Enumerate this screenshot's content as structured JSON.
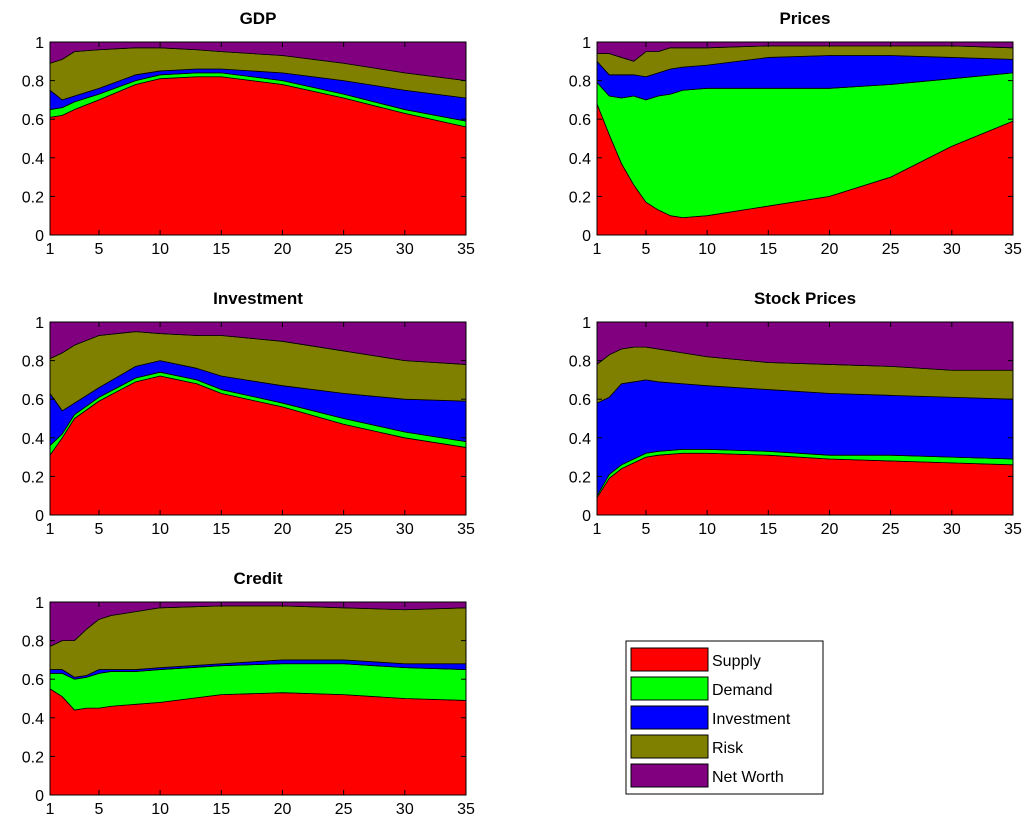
{
  "figure": {
    "colors": {
      "Supply": "#ff0000",
      "Demand": "#00ff00",
      "Investment": "#0000ff",
      "Risk": "#808000",
      "Net Worth": "#800080"
    }
  },
  "legend": {
    "placement": "bottom-right",
    "entries": [
      "Supply",
      "Demand",
      "Investment",
      "Risk",
      "Net Worth"
    ]
  },
  "chart_data": [
    {
      "type": "area",
      "stacked": true,
      "title": "GDP",
      "xlabel": "",
      "ylabel": "",
      "xlim": [
        1,
        35
      ],
      "ylim": [
        0,
        1
      ],
      "xticks": [
        1,
        5,
        10,
        15,
        20,
        25,
        30,
        35
      ],
      "yticks": [
        0,
        0.2,
        0.4,
        0.6,
        0.8,
        1
      ],
      "grid": false,
      "x": [
        1,
        2,
        3,
        5,
        8,
        10,
        13,
        15,
        20,
        25,
        30,
        35
      ],
      "series": [
        {
          "name": "Supply",
          "values": [
            0.61,
            0.62,
            0.65,
            0.7,
            0.78,
            0.81,
            0.82,
            0.82,
            0.78,
            0.71,
            0.63,
            0.56
          ]
        },
        {
          "name": "Demand",
          "values": [
            0.04,
            0.04,
            0.04,
            0.03,
            0.02,
            0.02,
            0.02,
            0.02,
            0.02,
            0.02,
            0.02,
            0.03
          ]
        },
        {
          "name": "Investment",
          "values": [
            0.1,
            0.04,
            0.03,
            0.03,
            0.03,
            0.02,
            0.02,
            0.02,
            0.04,
            0.07,
            0.1,
            0.12
          ]
        },
        {
          "name": "Risk",
          "values": [
            0.14,
            0.21,
            0.23,
            0.2,
            0.14,
            0.12,
            0.1,
            0.09,
            0.09,
            0.09,
            0.09,
            0.09
          ]
        },
        {
          "name": "Net Worth",
          "values": [
            0.11,
            0.09,
            0.05,
            0.04,
            0.03,
            0.03,
            0.04,
            0.05,
            0.07,
            0.11,
            0.16,
            0.2
          ]
        }
      ]
    },
    {
      "type": "area",
      "stacked": true,
      "title": "Prices",
      "xlabel": "",
      "ylabel": "",
      "xlim": [
        1,
        35
      ],
      "ylim": [
        0,
        1
      ],
      "xticks": [
        1,
        5,
        10,
        15,
        20,
        25,
        30,
        35
      ],
      "yticks": [
        0,
        0.2,
        0.4,
        0.6,
        0.8,
        1
      ],
      "grid": false,
      "x": [
        1,
        2,
        3,
        4,
        5,
        6,
        7,
        8,
        10,
        15,
        20,
        25,
        30,
        35
      ],
      "series": [
        {
          "name": "Supply",
          "values": [
            0.68,
            0.52,
            0.37,
            0.26,
            0.17,
            0.13,
            0.1,
            0.09,
            0.1,
            0.15,
            0.2,
            0.3,
            0.46,
            0.59
          ]
        },
        {
          "name": "Demand",
          "values": [
            0.11,
            0.2,
            0.34,
            0.46,
            0.53,
            0.59,
            0.63,
            0.66,
            0.66,
            0.61,
            0.56,
            0.48,
            0.35,
            0.25
          ]
        },
        {
          "name": "Investment",
          "values": [
            0.11,
            0.11,
            0.12,
            0.11,
            0.12,
            0.12,
            0.13,
            0.12,
            0.12,
            0.16,
            0.17,
            0.15,
            0.11,
            0.07
          ]
        },
        {
          "name": "Risk",
          "values": [
            0.04,
            0.11,
            0.09,
            0.07,
            0.13,
            0.11,
            0.11,
            0.1,
            0.09,
            0.06,
            0.05,
            0.05,
            0.06,
            0.06
          ]
        },
        {
          "name": "Net Worth",
          "values": [
            0.06,
            0.06,
            0.08,
            0.1,
            0.05,
            0.05,
            0.03,
            0.03,
            0.03,
            0.02,
            0.02,
            0.02,
            0.02,
            0.03
          ]
        }
      ]
    },
    {
      "type": "area",
      "stacked": true,
      "title": "Investment",
      "xlabel": "",
      "ylabel": "",
      "xlim": [
        1,
        35
      ],
      "ylim": [
        0,
        1
      ],
      "xticks": [
        1,
        5,
        10,
        15,
        20,
        25,
        30,
        35
      ],
      "yticks": [
        0,
        0.2,
        0.4,
        0.6,
        0.8,
        1
      ],
      "grid": false,
      "x": [
        1,
        2,
        3,
        5,
        8,
        10,
        13,
        15,
        20,
        25,
        30,
        35
      ],
      "series": [
        {
          "name": "Supply",
          "values": [
            0.31,
            0.4,
            0.5,
            0.59,
            0.69,
            0.72,
            0.68,
            0.63,
            0.56,
            0.47,
            0.4,
            0.35
          ]
        },
        {
          "name": "Demand",
          "values": [
            0.05,
            0.02,
            0.02,
            0.02,
            0.02,
            0.02,
            0.02,
            0.02,
            0.02,
            0.03,
            0.03,
            0.03
          ]
        },
        {
          "name": "Investment",
          "values": [
            0.27,
            0.12,
            0.06,
            0.05,
            0.06,
            0.06,
            0.06,
            0.07,
            0.09,
            0.13,
            0.17,
            0.21
          ]
        },
        {
          "name": "Risk",
          "values": [
            0.18,
            0.3,
            0.3,
            0.27,
            0.18,
            0.14,
            0.17,
            0.21,
            0.23,
            0.22,
            0.2,
            0.19
          ]
        },
        {
          "name": "Net Worth",
          "values": [
            0.19,
            0.16,
            0.12,
            0.07,
            0.05,
            0.06,
            0.07,
            0.07,
            0.1,
            0.15,
            0.2,
            0.22
          ]
        }
      ]
    },
    {
      "type": "area",
      "stacked": true,
      "title": "Stock Prices",
      "xlabel": "",
      "ylabel": "",
      "xlim": [
        1,
        35
      ],
      "ylim": [
        0,
        1
      ],
      "xticks": [
        1,
        5,
        10,
        15,
        20,
        25,
        30,
        35
      ],
      "yticks": [
        0,
        0.2,
        0.4,
        0.6,
        0.8,
        1
      ],
      "grid": false,
      "x": [
        1,
        2,
        3,
        4,
        5,
        6,
        8,
        10,
        15,
        20,
        25,
        30,
        35
      ],
      "series": [
        {
          "name": "Supply",
          "values": [
            0.09,
            0.19,
            0.24,
            0.27,
            0.3,
            0.31,
            0.32,
            0.32,
            0.31,
            0.29,
            0.28,
            0.27,
            0.26
          ]
        },
        {
          "name": "Demand",
          "values": [
            0.01,
            0.02,
            0.02,
            0.02,
            0.02,
            0.02,
            0.02,
            0.02,
            0.02,
            0.02,
            0.03,
            0.03,
            0.03
          ]
        },
        {
          "name": "Investment",
          "values": [
            0.48,
            0.4,
            0.42,
            0.4,
            0.38,
            0.36,
            0.34,
            0.33,
            0.32,
            0.32,
            0.31,
            0.31,
            0.31
          ]
        },
        {
          "name": "Risk",
          "values": [
            0.2,
            0.22,
            0.18,
            0.18,
            0.17,
            0.17,
            0.16,
            0.15,
            0.14,
            0.15,
            0.15,
            0.14,
            0.15
          ]
        },
        {
          "name": "Net Worth",
          "values": [
            0.22,
            0.17,
            0.14,
            0.13,
            0.13,
            0.14,
            0.16,
            0.18,
            0.21,
            0.22,
            0.23,
            0.25,
            0.25
          ]
        }
      ]
    },
    {
      "type": "area",
      "stacked": true,
      "title": "Credit",
      "xlabel": "",
      "ylabel": "",
      "xlim": [
        1,
        35
      ],
      "ylim": [
        0,
        1
      ],
      "xticks": [
        1,
        5,
        10,
        15,
        20,
        25,
        30,
        35
      ],
      "yticks": [
        0,
        0.2,
        0.4,
        0.6,
        0.8,
        1
      ],
      "grid": false,
      "x": [
        1,
        2,
        3,
        4,
        5,
        6,
        8,
        10,
        15,
        20,
        25,
        30,
        35
      ],
      "series": [
        {
          "name": "Supply",
          "values": [
            0.55,
            0.51,
            0.44,
            0.45,
            0.45,
            0.46,
            0.47,
            0.48,
            0.52,
            0.53,
            0.52,
            0.5,
            0.49
          ]
        },
        {
          "name": "Demand",
          "values": [
            0.08,
            0.12,
            0.16,
            0.16,
            0.18,
            0.18,
            0.17,
            0.17,
            0.15,
            0.15,
            0.16,
            0.16,
            0.16
          ]
        },
        {
          "name": "Investment",
          "values": [
            0.02,
            0.02,
            0.01,
            0.01,
            0.02,
            0.01,
            0.01,
            0.01,
            0.01,
            0.02,
            0.02,
            0.02,
            0.03
          ]
        },
        {
          "name": "Risk",
          "values": [
            0.12,
            0.15,
            0.19,
            0.24,
            0.26,
            0.28,
            0.3,
            0.31,
            0.3,
            0.28,
            0.27,
            0.28,
            0.29
          ]
        },
        {
          "name": "Net Worth",
          "values": [
            0.23,
            0.2,
            0.2,
            0.14,
            0.09,
            0.07,
            0.05,
            0.03,
            0.02,
            0.02,
            0.03,
            0.04,
            0.03
          ]
        }
      ]
    }
  ]
}
